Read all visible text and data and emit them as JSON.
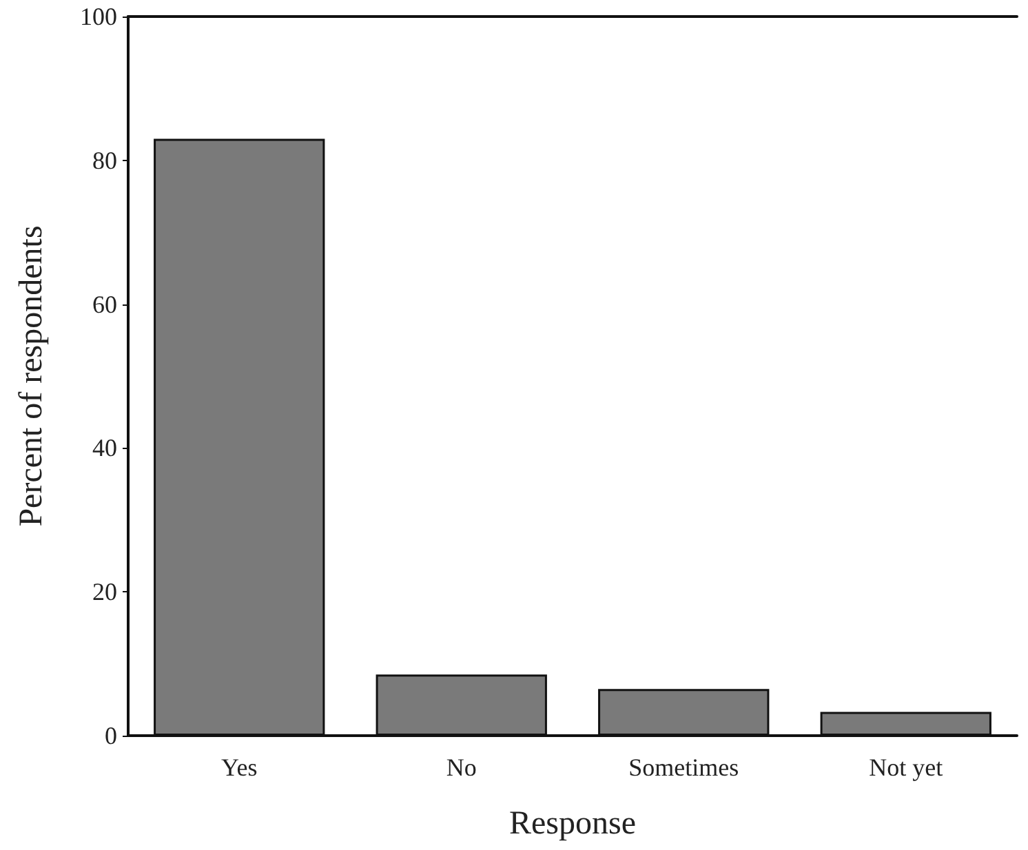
{
  "chart_data": {
    "type": "bar",
    "xlabel": "Response",
    "ylabel": "Percent of respondents",
    "categories": [
      "Yes",
      "No",
      "Sometimes",
      "Not yet"
    ],
    "values": [
      83,
      8.5,
      6.5,
      3.3
    ],
    "color": "#7a7a7a",
    "ylim": [
      0,
      100
    ],
    "yticks": [
      0,
      20,
      40,
      60,
      80,
      100
    ]
  }
}
